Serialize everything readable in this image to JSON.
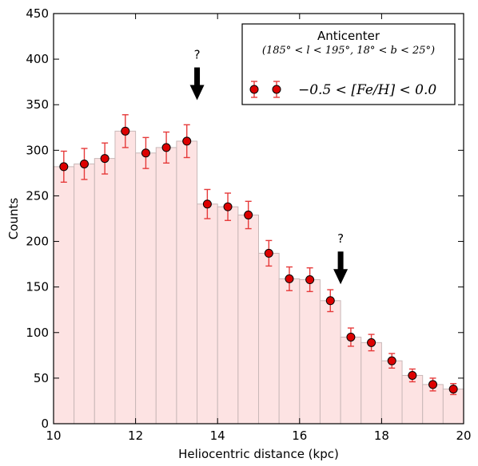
{
  "chart_data": {
    "type": "bar",
    "xlabel": "Heliocentric distance (kpc)",
    "ylabel": "Counts",
    "xlim": [
      10,
      20
    ],
    "ylim": [
      0,
      450
    ],
    "xticks": [
      10,
      12,
      14,
      16,
      18,
      20
    ],
    "yticks": [
      0,
      50,
      100,
      150,
      200,
      250,
      300,
      350,
      400,
      450
    ],
    "bin_edges": [
      10.0,
      10.5,
      11.0,
      11.5,
      12.0,
      12.5,
      13.0,
      13.5,
      14.0,
      14.5,
      15.0,
      15.5,
      16.0,
      16.5,
      17.0,
      17.5,
      18.0,
      18.5,
      19.0,
      19.5,
      20.0
    ],
    "bin_centers": [
      10.25,
      10.75,
      11.25,
      11.75,
      12.25,
      12.75,
      13.25,
      13.75,
      14.25,
      14.75,
      15.25,
      15.75,
      16.25,
      16.75,
      17.25,
      17.75,
      18.25,
      18.75,
      19.25,
      19.75
    ],
    "counts": [
      282,
      285,
      291,
      321,
      297,
      303,
      310,
      241,
      238,
      229,
      187,
      159,
      158,
      135,
      95,
      89,
      69,
      53,
      43,
      38
    ],
    "errors": [
      17,
      17,
      17,
      18,
      17,
      17,
      18,
      16,
      15,
      15,
      14,
      13,
      13,
      12,
      10,
      9,
      8,
      7,
      7,
      6
    ],
    "legend": {
      "title": "Anticenter",
      "subtitle": "(185° < l < 195°, 18° < b < 25°)",
      "label": "−0.5 < [Fe/H] < 0.0",
      "position": "upper-right"
    },
    "annotations": [
      {
        "text": "?",
        "x": 13.5,
        "y_tip": 355
      },
      {
        "text": "?",
        "x": 17.0,
        "y_tip": 153
      }
    ],
    "colors": {
      "bar_fill": "#fde3e3",
      "bar_edge": "#c9b8b8",
      "marker": "#dd0000",
      "errorbar": "#e63a3a"
    }
  }
}
